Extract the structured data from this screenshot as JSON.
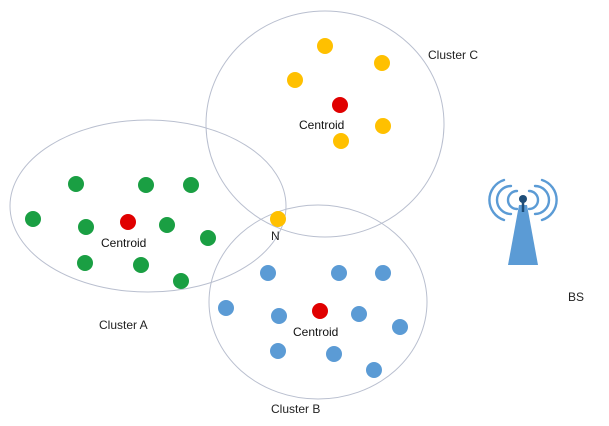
{
  "labels": {
    "cluster_a": "Cluster A",
    "cluster_b": "Cluster B",
    "cluster_c": "Cluster C",
    "centroid_a": "Centroid",
    "centroid_b": "Centroid",
    "centroid_c": "Centroid",
    "node_n": "N",
    "base_station": "BS"
  },
  "colors": {
    "cluster_outline": "#b9bfcf",
    "centroid": "#e00000",
    "cluster_a_node": "#1a9f43",
    "cluster_b_node": "#5b9bd5",
    "cluster_c_node": "#ffc000",
    "tower": "#5b9bd5",
    "tower_signal": "#5b9bd5",
    "tower_tip": "#1f4e79"
  },
  "icons": {
    "base_station": "antenna-tower-icon"
  }
}
